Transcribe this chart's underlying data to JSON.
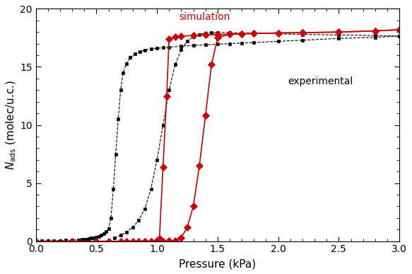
{
  "title": "",
  "xlabel": "Pressure (kPa)",
  "ylabel": "$N_{\\mathrm{ads}}$ (molec/u.c.)",
  "xlim": [
    0,
    3
  ],
  "ylim": [
    0,
    20
  ],
  "xticks": [
    0,
    0.5,
    1,
    1.5,
    2,
    2.5,
    3
  ],
  "yticks": [
    0,
    5,
    10,
    15,
    20
  ],
  "exp_ads_x": [
    0,
    0.05,
    0.1,
    0.15,
    0.2,
    0.25,
    0.3,
    0.35,
    0.38,
    0.4,
    0.42,
    0.44,
    0.46,
    0.48,
    0.5,
    0.52,
    0.54,
    0.56,
    0.58,
    0.6,
    0.62,
    0.64,
    0.66,
    0.68,
    0.7,
    0.72,
    0.75,
    0.78,
    0.82,
    0.86,
    0.9,
    0.95,
    1.0,
    1.05,
    1.1,
    1.2,
    1.3,
    1.4,
    1.5,
    1.6,
    1.7,
    1.8,
    2.0,
    2.2,
    2.5,
    2.8,
    3.0
  ],
  "exp_ads_y": [
    0.0,
    0.01,
    0.02,
    0.03,
    0.05,
    0.07,
    0.09,
    0.12,
    0.14,
    0.16,
    0.19,
    0.22,
    0.26,
    0.3,
    0.35,
    0.42,
    0.52,
    0.65,
    0.85,
    1.1,
    2.0,
    4.5,
    7.5,
    10.5,
    13.0,
    14.5,
    15.3,
    15.8,
    16.1,
    16.3,
    16.45,
    16.55,
    16.6,
    16.65,
    16.7,
    16.78,
    16.85,
    16.9,
    16.95,
    17.0,
    17.05,
    17.1,
    17.2,
    17.3,
    17.45,
    17.55,
    17.65
  ],
  "exp_des_x": [
    3.0,
    2.8,
    2.5,
    2.2,
    2.0,
    1.8,
    1.7,
    1.6,
    1.5,
    1.45,
    1.4,
    1.35,
    1.3,
    1.25,
    1.2,
    1.15,
    1.1,
    1.05,
    1.0,
    0.95,
    0.9,
    0.85,
    0.8,
    0.75,
    0.7,
    0.65
  ],
  "exp_des_y": [
    17.65,
    17.7,
    17.75,
    17.8,
    17.85,
    17.9,
    17.92,
    17.95,
    17.95,
    17.93,
    17.9,
    17.8,
    17.6,
    17.2,
    16.5,
    15.2,
    13.0,
    10.0,
    7.0,
    4.5,
    2.8,
    1.8,
    1.2,
    0.8,
    0.5,
    0.3
  ],
  "sim_ads_x": [
    0.0,
    0.3,
    0.5,
    0.6,
    0.7,
    0.75,
    0.8,
    0.85,
    0.9,
    0.95,
    1.0,
    1.02,
    1.05,
    1.08,
    1.1,
    1.15,
    1.2,
    1.3,
    1.4,
    1.5,
    1.6,
    1.7,
    1.8,
    2.0,
    2.2,
    2.5,
    2.8,
    3.0
  ],
  "sim_ads_y": [
    0.0,
    0.0,
    0.0,
    0.0,
    0.0,
    0.0,
    0.0,
    0.0,
    0.0,
    0.0,
    0.05,
    0.2,
    6.4,
    12.5,
    17.4,
    17.6,
    17.65,
    17.7,
    17.75,
    17.78,
    17.82,
    17.85,
    17.88,
    17.92,
    17.95,
    18.0,
    18.1,
    18.2
  ],
  "sim_des_x": [
    3.0,
    2.8,
    2.5,
    2.2,
    2.0,
    1.8,
    1.7,
    1.6,
    1.5,
    1.45,
    1.4,
    1.35,
    1.3,
    1.25,
    1.2,
    1.15,
    1.1,
    1.05,
    1.0,
    0.95,
    0.9
  ],
  "sim_des_y": [
    18.2,
    18.1,
    18.0,
    17.95,
    17.92,
    17.88,
    17.85,
    17.82,
    17.5,
    15.2,
    10.8,
    6.5,
    3.0,
    1.2,
    0.3,
    0.05,
    0.01,
    0.0,
    0.0,
    0.0,
    0.0
  ],
  "exp_color": "#000000",
  "sim_color": "#cc0000",
  "annotation_sim": "simulation",
  "annotation_exp": "experimental",
  "sim_ann_x": 1.18,
  "sim_ann_y": 18.85,
  "exp_ann_x": 2.08,
  "exp_ann_y": 14.2,
  "figsize": [
    5.83,
    3.87
  ],
  "dpi": 100
}
